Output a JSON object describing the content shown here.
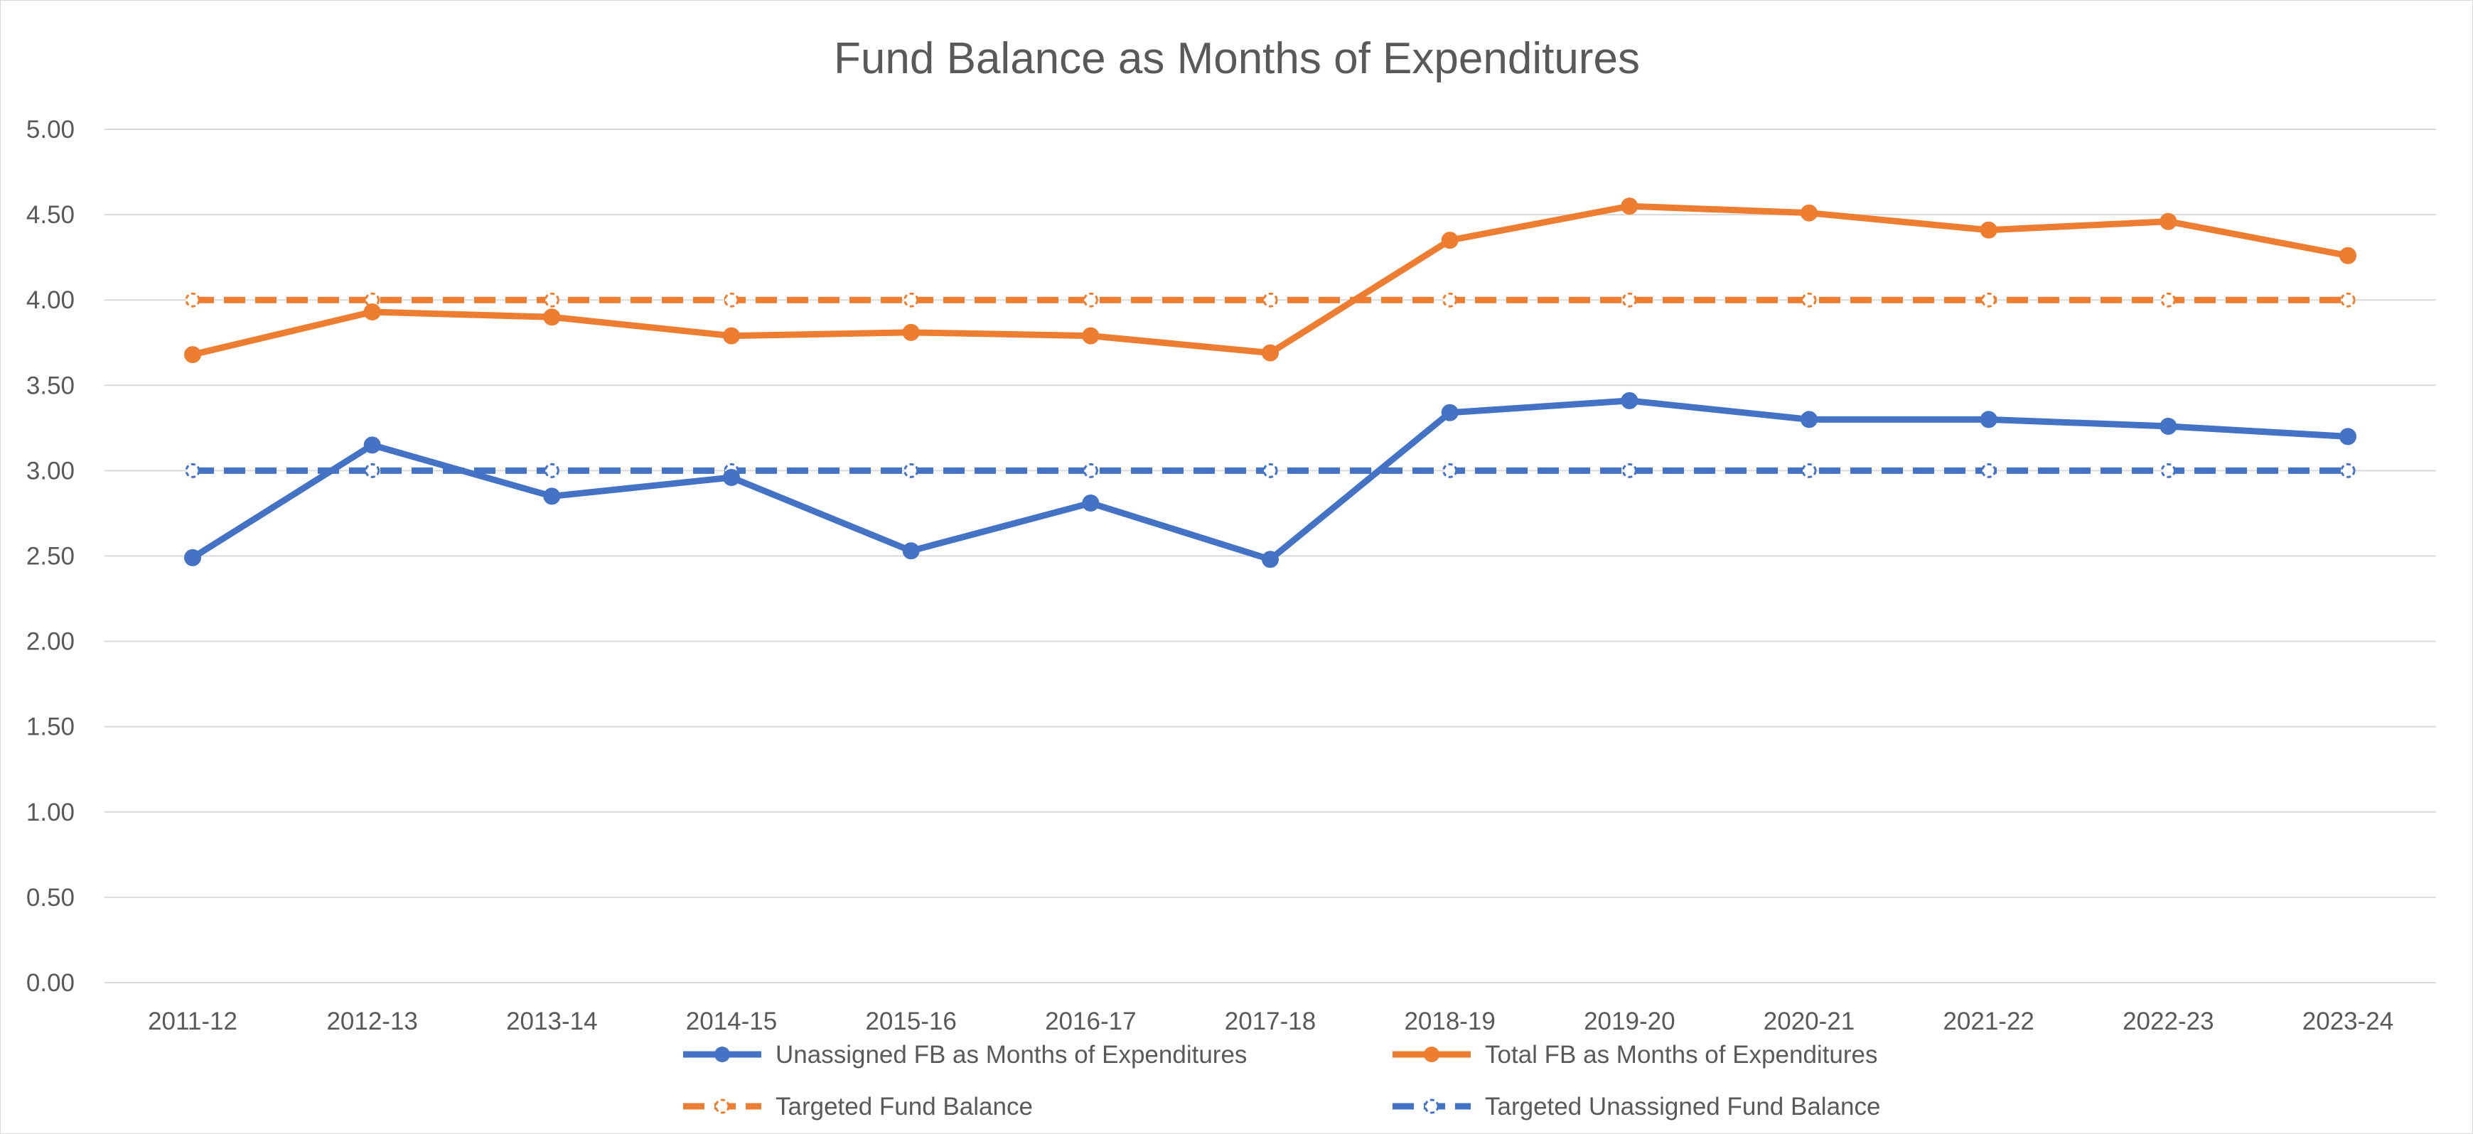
{
  "chart_data": {
    "type": "line",
    "title": "Fund Balance as Months of Expenditures",
    "xlabel": "",
    "ylabel": "",
    "categories": [
      "2011-12",
      "2012-13",
      "2013-14",
      "2014-15",
      "2015-16",
      "2016-17",
      "2017-18",
      "2018-19",
      "2019-20",
      "2020-21",
      "2021-22",
      "2022-23",
      "2023-24"
    ],
    "ylim": [
      0,
      5
    ],
    "y_ticks": [
      "0.00",
      "0.50",
      "1.00",
      "1.50",
      "2.00",
      "2.50",
      "3.00",
      "3.50",
      "4.00",
      "4.50",
      "5.00"
    ],
    "grid": true,
    "legend_position": "bottom",
    "series": [
      {
        "name": "Unassigned FB as Months of Expenditures",
        "color": "#4472C4",
        "style": "solid",
        "marker": "filled-circle",
        "values": [
          2.49,
          3.15,
          2.85,
          2.96,
          2.53,
          2.81,
          2.48,
          3.34,
          3.41,
          3.3,
          3.3,
          3.26,
          3.2
        ]
      },
      {
        "name": "Total FB as Months of Expenditures",
        "color": "#ED7D31",
        "style": "solid",
        "marker": "filled-circle",
        "values": [
          3.68,
          3.93,
          3.9,
          3.79,
          3.81,
          3.79,
          3.69,
          4.35,
          4.55,
          4.51,
          4.41,
          4.46,
          4.26
        ]
      },
      {
        "name": "Targeted Fund Balance",
        "color": "#ED7D31",
        "style": "dashed",
        "marker": "hollow-circle",
        "values": [
          4,
          4,
          4,
          4,
          4,
          4,
          4,
          4,
          4,
          4,
          4,
          4,
          4
        ]
      },
      {
        "name": "Targeted Unassigned Fund Balance",
        "color": "#4472C4",
        "style": "dashed",
        "marker": "hollow-circle",
        "values": [
          3,
          3,
          3,
          3,
          3,
          3,
          3,
          3,
          3,
          3,
          3,
          3,
          3
        ]
      }
    ]
  }
}
